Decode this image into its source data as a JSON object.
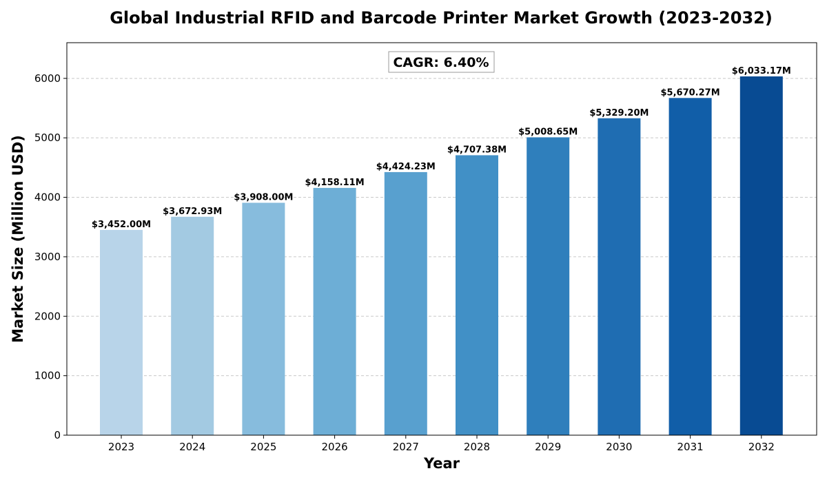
{
  "chart_data": {
    "type": "bar",
    "title": "Global Industrial RFID and Barcode Printer Market Growth (2023-2032)",
    "xlabel": "Year",
    "ylabel": "Market Size (Million USD)",
    "categories": [
      "2023",
      "2024",
      "2025",
      "2026",
      "2027",
      "2028",
      "2029",
      "2030",
      "2031",
      "2032"
    ],
    "values": [
      3452.0,
      3672.93,
      3908.0,
      4158.11,
      4424.23,
      4707.38,
      5008.65,
      5329.2,
      5670.27,
      6033.17
    ],
    "data_labels": [
      "$3,452.00M",
      "$3,672.93M",
      "$3,908.00M",
      "$4,158.11M",
      "$4,424.23M",
      "$4,707.38M",
      "$5,008.65M",
      "$5,329.20M",
      "$5,670.27M",
      "$6,033.17M"
    ],
    "bar_colors": [
      "#b8d4e9",
      "#a3cae2",
      "#87bcdd",
      "#6daed6",
      "#58a0cf",
      "#4190c6",
      "#2f7fbc",
      "#1f6db2",
      "#115ea8",
      "#084b93"
    ],
    "ylim": [
      0,
      6600
    ],
    "yticks": [
      0,
      1000,
      2000,
      3000,
      4000,
      5000,
      6000
    ],
    "grid": true,
    "annotation": "CAGR: 6.40%"
  }
}
